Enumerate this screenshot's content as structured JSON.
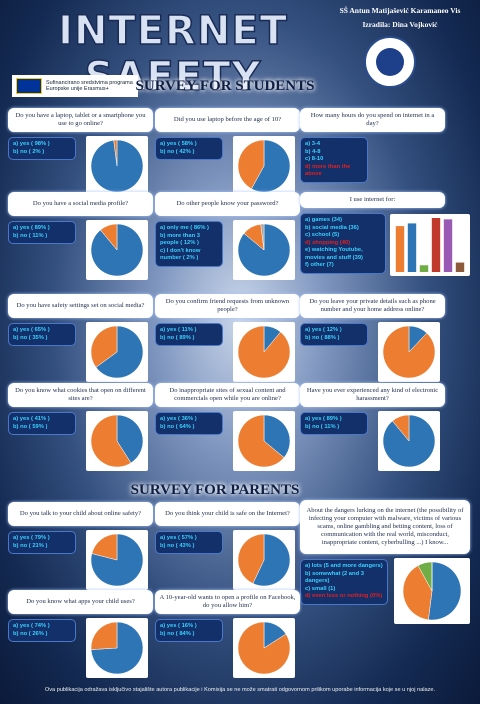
{
  "header": {
    "title": "INTERNET SAFETY",
    "school": "SŠ Antun Matijašević Karamaneo Vis",
    "author": "Izradila: Dina Vojković",
    "eu_text": "Sufinancirano sredstvima programa Europske unije Erasmus+"
  },
  "sections": {
    "students": "SURVEY FOR STUDENTS",
    "parents": "SURVEY FOR PARENTS"
  },
  "pie_colors": [
    "#2e75b6",
    "#ed7d31",
    "#a5a5a5",
    "#70ad47"
  ],
  "items": [
    {
      "question": "Do you have a laptop, tablet or a smartphone you use to go online?",
      "type": "pie",
      "options": [
        {
          "label": "a) yes ( 98% )",
          "value": 98
        },
        {
          "label": "b) no ( 2% )",
          "value": 2
        }
      ]
    },
    {
      "question": "Did you use laptop before the age of 10?",
      "type": "pie",
      "options": [
        {
          "label": "a) yes ( 58% )",
          "value": 58
        },
        {
          "label": "b) no ( 42% )",
          "value": 42
        }
      ]
    },
    {
      "question": "How many hours do you spend on internet in a day?",
      "type": "none",
      "options": [
        {
          "label": "a) 3-4"
        },
        {
          "label": "b) 4-8"
        },
        {
          "label": "c) 8-10"
        },
        {
          "label": "d) more than the above",
          "color": "#e02020"
        }
      ]
    },
    {
      "question": "Do you have a social media profile?",
      "type": "pie",
      "options": [
        {
          "label": "a) yes ( 89% )",
          "value": 89
        },
        {
          "label": "b) no ( 11% )",
          "value": 11
        }
      ]
    },
    {
      "question": "Do other people know your password?",
      "type": "pie",
      "options": [
        {
          "label": "a) only me ( 86% )",
          "value": 86
        },
        {
          "label": "b) more than 3 people ( 12% )",
          "value": 12
        },
        {
          "label": "c) I don't know number ( 2% )",
          "value": 2
        }
      ]
    },
    {
      "question": "I use internet for:",
      "type": "bar",
      "colors": [
        "#ed7d31",
        "#2e75b6",
        "#70ad47",
        "#c0392b",
        "#9b59b6",
        "#8e5a3c"
      ],
      "options": [
        {
          "label": "a) games (34)",
          "value": 34
        },
        {
          "label": "b) social media (36)",
          "value": 36
        },
        {
          "label": "c) school (5)",
          "value": 5
        },
        {
          "label": "d) shopping (40)",
          "value": 40,
          "color": "#e02020"
        },
        {
          "label": "e) watching Youtube, movies and stuff (39)",
          "value": 39
        },
        {
          "label": "f) other (7)",
          "value": 7
        }
      ]
    },
    {
      "question": "Do you have safety settings set on social media?",
      "type": "pie",
      "options": [
        {
          "label": "a) yes ( 65% )",
          "value": 65
        },
        {
          "label": "b) no ( 35% )",
          "value": 35
        }
      ]
    },
    {
      "question": "Do you confirm friend requests from unknown people?",
      "type": "pie",
      "options": [
        {
          "label": "a) yes ( 11% )",
          "value": 11
        },
        {
          "label": "b) no ( 89% )",
          "value": 89
        }
      ]
    },
    {
      "question": "Do you leave your private details such as phone number and your home address online?",
      "type": "pie",
      "options": [
        {
          "label": "a) yes ( 12% )",
          "value": 12
        },
        {
          "label": "b) no ( 88% )",
          "value": 88
        }
      ]
    },
    {
      "question": "Do you know what cookies that open on different sites are?",
      "type": "pie",
      "options": [
        {
          "label": "a) yes ( 41% )",
          "value": 41
        },
        {
          "label": "b) no ( 59% )",
          "value": 59
        }
      ]
    },
    {
      "question": "Do inappropriate sites of sexual content and commercials open while you are online?",
      "type": "pie",
      "options": [
        {
          "label": "a) yes ( 36% )",
          "value": 36
        },
        {
          "label": "b) no ( 64% )",
          "value": 64
        }
      ]
    },
    {
      "question": "Have you ever experienced any kind of electronic harassment?",
      "type": "pie",
      "options": [
        {
          "label": "a) yes ( 89% )",
          "value": 89
        },
        {
          "label": "b) no ( 11% )",
          "value": 11
        }
      ]
    },
    {
      "question": "Do you talk to your child about online safety?",
      "type": "pie",
      "options": [
        {
          "label": "a) yes ( 79% )",
          "value": 79
        },
        {
          "label": "b) no ( 21% )",
          "value": 21
        }
      ]
    },
    {
      "question": "Do you think your child is safe on the Internet?",
      "type": "pie",
      "options": [
        {
          "label": "a) yes ( 57% )",
          "value": 57
        },
        {
          "label": "b) no ( 43% )",
          "value": 43
        }
      ]
    },
    {
      "question": "About the dangers lurking on the internet (the possibility of infecting your computer with malware, victims of various scams, online gambling and betting content, loss of communication with the real world, misconduct, inappropriate content, cyberbulling ...) I know...",
      "type": "pie",
      "colors": [
        "#2e75b6",
        "#ed7d31",
        "#70ad47",
        "#e02020"
      ],
      "options": [
        {
          "label": "a) lots (5 and more dangers)",
          "value": 52
        },
        {
          "label": "b) somewhat (2 and 3 dangers)",
          "value": 40
        },
        {
          "label": "c) small (1)",
          "value": 8
        },
        {
          "label": "d) even less or nothing (0%)",
          "value": 0,
          "color": "#e02020"
        }
      ]
    },
    {
      "question": "Do you know what apps your child uses?",
      "type": "pie",
      "options": [
        {
          "label": "a) yes ( 74% )",
          "value": 74
        },
        {
          "label": "b) no ( 26% )",
          "value": 26
        }
      ]
    },
    {
      "question": "A 10-year-old wants to open a profile on Facebook, do you allow him?",
      "type": "pie",
      "options": [
        {
          "label": "a) yes ( 16% )",
          "value": 16
        },
        {
          "label": "b) no ( 84% )",
          "value": 84
        }
      ]
    }
  ],
  "footer": "Ova publikacija odražava isključivo stajalište autora publikacije i Komisija se ne može smatrati odgovornom prilikom uporabe informacija koje se u njoj nalaze."
}
